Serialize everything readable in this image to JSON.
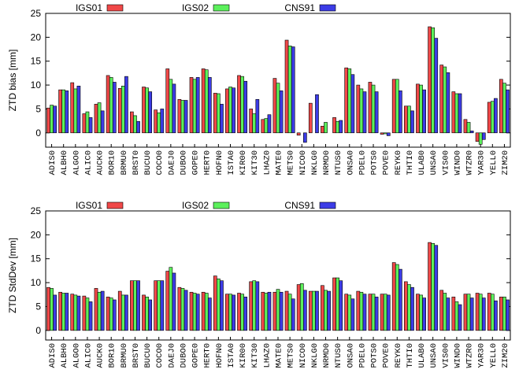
{
  "chart_data": [
    {
      "type": "bar",
      "ylabel": "ZTD bias [mm]",
      "categories": [
        "ADIS0",
        "ALBH0",
        "ALGO0",
        "ALIC0",
        "AUCK0",
        "BOR10",
        "BRMU0",
        "BRST0",
        "BUCU0",
        "COCO0",
        "DAEJ0",
        "DUBO0",
        "GOPE0",
        "HERT0",
        "HOFN0",
        "ISTA0",
        "KIR00",
        "KIT30",
        "LHAZ0",
        "MATE0",
        "METS0",
        "NICO0",
        "NKLG0",
        "NRMD0",
        "NTUS0",
        "ONSA0",
        "PDEL0",
        "POTS0",
        "POVE0",
        "REYK0",
        "THTI0",
        "ULAB0",
        "UNSA0",
        "VIS00",
        "WIND0",
        "WTZR0",
        "YAR30",
        "YELL0",
        "ZIM20"
      ],
      "series": [
        {
          "name": "IGS01",
          "color": "#f04848",
          "values": [
            5.2,
            9,
            10.5,
            4,
            6,
            12,
            9.3,
            4.4,
            9.6,
            4.8,
            13.4,
            7,
            11.6,
            13.4,
            8.3,
            9.2,
            12,
            5,
            2.8,
            11.4,
            19.4,
            -0.5,
            6.2,
            1.4,
            3.2,
            13.6,
            10,
            10.6,
            -0.3,
            11.2,
            5.6,
            10.2,
            22.2,
            14.2,
            8.6,
            2.8,
            -1.8,
            6.4,
            11.2
          ]
        },
        {
          "name": "IGS02",
          "color": "#5cf05c",
          "values": [
            5.8,
            9,
            9.2,
            4.4,
            6.3,
            11.6,
            9.8,
            3.6,
            9.4,
            4.2,
            11.2,
            6.8,
            11.2,
            13.2,
            8.2,
            9.6,
            11.8,
            4,
            3,
            10.4,
            18.2,
            0,
            0,
            2.2,
            2.4,
            13.4,
            9.2,
            10,
            -0.2,
            11.2,
            5.6,
            10,
            22,
            13.8,
            8.2,
            2.2,
            -2.4,
            6.6,
            10.4
          ]
        },
        {
          "name": "CNS91",
          "color": "#3c3ce6",
          "values": [
            5.6,
            8.8,
            9.8,
            3.2,
            4.6,
            10.6,
            11.8,
            2.4,
            8.6,
            5,
            10.2,
            6.8,
            11.6,
            11.6,
            6,
            9.4,
            10.8,
            7,
            3.8,
            8.8,
            18,
            -2,
            8,
            0,
            2.6,
            12.2,
            8.6,
            8.6,
            -0.6,
            8.8,
            4.6,
            9,
            19.8,
            12.6,
            8.2,
            0.4,
            -1.4,
            7.2,
            9
          ]
        }
      ],
      "ylim": [
        -3,
        25
      ],
      "yticks": [
        0,
        5,
        10,
        15,
        20,
        25
      ]
    },
    {
      "type": "bar",
      "ylabel": "ZTD StdDev [mm]",
      "categories": [
        "ADIS0",
        "ALBH0",
        "ALGO0",
        "ALIC0",
        "AUCK0",
        "BOR10",
        "BRMU0",
        "BRST0",
        "BUCU0",
        "COCO0",
        "DAEJ0",
        "DUBO0",
        "GOPE0",
        "HERT0",
        "HOFN0",
        "ISTA0",
        "KIR00",
        "KIT30",
        "LHAZ0",
        "MATE0",
        "METS0",
        "NICO0",
        "NKLG0",
        "NRMD0",
        "NTUS0",
        "ONSA0",
        "PDEL0",
        "POTS0",
        "POVE0",
        "REYK0",
        "THTI0",
        "ULAB0",
        "UNSA0",
        "VIS00",
        "WIND0",
        "WTZR0",
        "YAR30",
        "YELL0",
        "ZIM20"
      ],
      "series": [
        {
          "name": "IGS01",
          "color": "#f04848",
          "values": [
            9,
            8,
            7.6,
            7.2,
            8.8,
            7,
            8.2,
            10.4,
            7.4,
            10.4,
            12.4,
            9,
            8,
            8,
            11.4,
            7.6,
            7.8,
            10.2,
            8,
            8,
            8.2,
            9.6,
            8.2,
            9.4,
            11,
            7.6,
            8.2,
            7.6,
            7.6,
            14.2,
            10.2,
            7.6,
            18.4,
            8.4,
            7,
            7.6,
            7.8,
            7.8,
            7
          ]
        },
        {
          "name": "IGS02",
          "color": "#5cf05c",
          "values": [
            8.8,
            7.8,
            7.4,
            6.8,
            8,
            6.8,
            7.4,
            10.4,
            7,
            10.4,
            13.2,
            8.8,
            7.8,
            7.8,
            10.8,
            7.6,
            7.6,
            10.4,
            7.8,
            8.6,
            7.6,
            9.8,
            8.2,
            8.4,
            11,
            7.4,
            8,
            7.6,
            7.6,
            13.8,
            9.6,
            7.4,
            18.2,
            7.8,
            6,
            7.6,
            7.6,
            7.6,
            7
          ]
        },
        {
          "name": "CNS91",
          "color": "#3c3ce6",
          "values": [
            7.4,
            7.8,
            7.2,
            6,
            8.2,
            6.4,
            7.4,
            10.4,
            6.4,
            10.4,
            12,
            8.4,
            7.6,
            6.8,
            10.4,
            7.4,
            7,
            10.2,
            8,
            8,
            6.6,
            8.4,
            8.2,
            8.2,
            10.4,
            6.6,
            7.6,
            7,
            7.4,
            12.8,
            9,
            6.8,
            17.8,
            6.8,
            5.4,
            6.8,
            6.8,
            6.2,
            6.4
          ]
        }
      ],
      "ylim": [
        -2,
        25
      ],
      "yticks": [
        0,
        5,
        10,
        15,
        20,
        25
      ]
    }
  ]
}
